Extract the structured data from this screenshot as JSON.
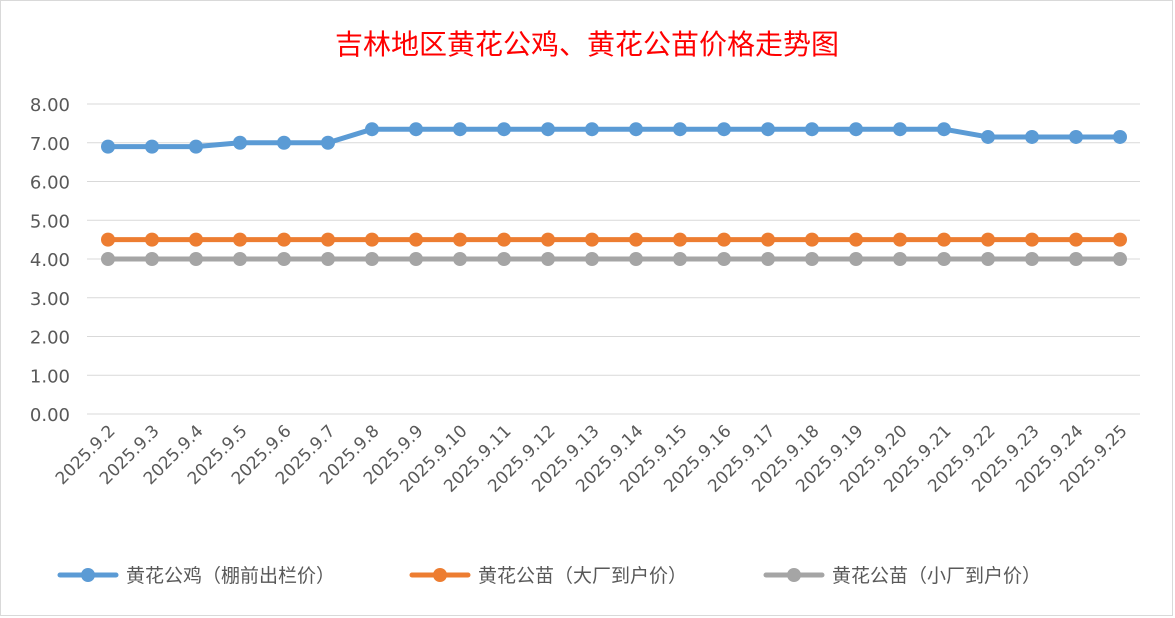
{
  "chart_data": {
    "type": "line",
    "title": "吉林地区黄花公鸡、黄花公苗价格走势图",
    "xlabel": "",
    "ylabel": "",
    "ylim": [
      0,
      8
    ],
    "yticks": [
      "0.00",
      "1.00",
      "2.00",
      "3.00",
      "4.00",
      "5.00",
      "6.00",
      "7.00",
      "8.00"
    ],
    "grid": true,
    "legend_position": "bottom",
    "categories": [
      "2025.9.2",
      "2025.9.3",
      "2025.9.4",
      "2025.9.5",
      "2025.9.6",
      "2025.9.7",
      "2025.9.8",
      "2025.9.9",
      "2025.9.10",
      "2025.9.11",
      "2025.9.12",
      "2025.9.13",
      "2025.9.14",
      "2025.9.15",
      "2025.9.16",
      "2025.9.17",
      "2025.9.18",
      "2025.9.19",
      "2025.9.20",
      "2025.9.21",
      "2025.9.22",
      "2025.9.23",
      "2025.9.24",
      "2025.9.25"
    ],
    "series": [
      {
        "name": "黄花公鸡（棚前出栏价）",
        "color": "#5b9bd5",
        "values": [
          6.9,
          6.9,
          6.9,
          7.0,
          7.0,
          7.0,
          7.35,
          7.35,
          7.35,
          7.35,
          7.35,
          7.35,
          7.35,
          7.35,
          7.35,
          7.35,
          7.35,
          7.35,
          7.35,
          7.35,
          7.15,
          7.15,
          7.15,
          7.15
        ]
      },
      {
        "name": "黄花公苗（大厂到户价）",
        "color": "#ed7d31",
        "values": [
          4.5,
          4.5,
          4.5,
          4.5,
          4.5,
          4.5,
          4.5,
          4.5,
          4.5,
          4.5,
          4.5,
          4.5,
          4.5,
          4.5,
          4.5,
          4.5,
          4.5,
          4.5,
          4.5,
          4.5,
          4.5,
          4.5,
          4.5,
          4.5
        ]
      },
      {
        "name": "黄花公苗（小厂到户价）",
        "color": "#a5a5a5",
        "values": [
          4.0,
          4.0,
          4.0,
          4.0,
          4.0,
          4.0,
          4.0,
          4.0,
          4.0,
          4.0,
          4.0,
          4.0,
          4.0,
          4.0,
          4.0,
          4.0,
          4.0,
          4.0,
          4.0,
          4.0,
          4.0,
          4.0,
          4.0,
          4.0
        ]
      }
    ]
  }
}
